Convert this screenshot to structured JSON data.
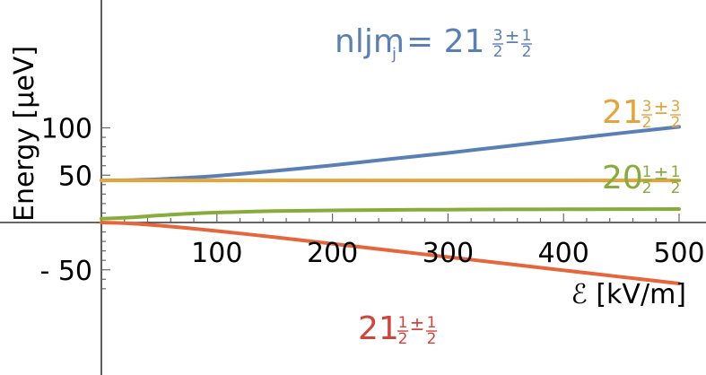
{
  "chart_data": {
    "type": "line",
    "title": "",
    "xlabel": "ℰ [kV/m]",
    "ylabel": "Energy [μeV]",
    "xlim": [
      0,
      500
    ],
    "ylim": [
      -75,
      108
    ],
    "x_ticks": [
      100,
      200,
      300,
      400,
      500
    ],
    "y_ticks": [
      -50,
      50,
      100
    ],
    "y_tick_labels": [
      "- 50",
      "50",
      "100"
    ],
    "grid": false,
    "series": [
      {
        "name": "nljm_j = 21 3/2 ± 1/2",
        "label_main": "nljm",
        "label_sub": "j",
        "label_digits": "= 21",
        "label_frac1": [
          "3",
          "2"
        ],
        "label_frac2": [
          "1",
          "2"
        ],
        "label_pm": "±",
        "color": "#5a7fb5",
        "x": [
          0,
          25,
          50,
          75,
          100,
          150,
          200,
          250,
          300,
          350,
          400,
          450,
          500
        ],
        "y": [
          44.5,
          44.8,
          45.8,
          47.3,
          49.3,
          54.5,
          60.5,
          67.0,
          73.5,
          80.5,
          87.5,
          94.5,
          101.0
        ]
      },
      {
        "name": "21 3/2 ± 3/2",
        "label_digits": "21",
        "label_frac1": [
          "3",
          "2"
        ],
        "label_frac2": [
          "3",
          "2"
        ],
        "label_pm": "±",
        "color": "#e5a43a",
        "x": [
          0,
          500
        ],
        "y": [
          44.5,
          44.5
        ]
      },
      {
        "name": "20 1/2 ± 1/2",
        "label_digits": "20",
        "label_frac1": [
          "1",
          "2"
        ],
        "label_frac2": [
          "1",
          "2"
        ],
        "label_pm": "±",
        "color": "#86ac3c",
        "x": [
          0,
          25,
          50,
          75,
          100,
          150,
          200,
          250,
          300,
          350,
          400,
          450,
          500
        ],
        "y": [
          4.0,
          5.3,
          7.5,
          9.3,
          10.5,
          12.0,
          12.8,
          13.3,
          13.6,
          13.8,
          14.0,
          14.1,
          14.2
        ]
      },
      {
        "name": "21 1/2 ± 1/2",
        "label_digits": "21",
        "label_frac1": [
          "1",
          "2"
        ],
        "label_frac2": [
          "1",
          "2"
        ],
        "label_pm": "±",
        "color": "#e5663a",
        "label_color": "#d0453a",
        "x": [
          0,
          25,
          50,
          75,
          100,
          150,
          200,
          250,
          300,
          350,
          400,
          450,
          500
        ],
        "y": [
          0,
          -1.0,
          -3.2,
          -6.0,
          -9.0,
          -15.5,
          -22.5,
          -29.5,
          -36.5,
          -43.5,
          -50.5,
          -57.5,
          -64.5
        ]
      }
    ]
  }
}
